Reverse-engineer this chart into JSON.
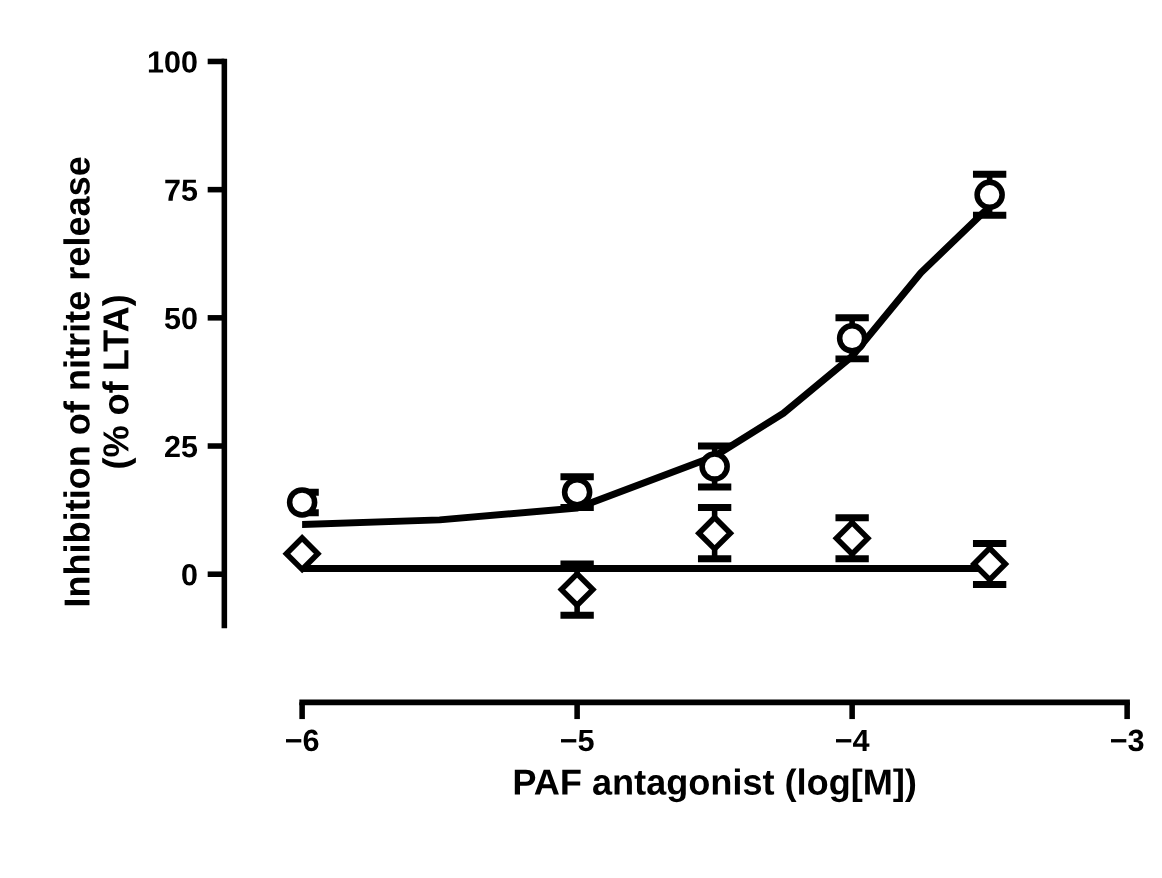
{
  "chart_data": {
    "type": "scatter",
    "xlabel": "PAF antagonist (log[M])",
    "ylabel": "Inhibition of nitrite release\n(% of LTA)",
    "xlim": [
      -6,
      -3
    ],
    "ylim": [
      -25,
      100
    ],
    "xticks": [
      {
        "value": -6,
        "label": "−6"
      },
      {
        "value": -5,
        "label": "−5"
      },
      {
        "value": -4,
        "label": "−4"
      },
      {
        "value": -3,
        "label": "−3"
      }
    ],
    "yticks": [
      0,
      25,
      50,
      75,
      100
    ],
    "grid": false,
    "series": [
      {
        "type": "line",
        "color": "#000000",
        "marker": "none",
        "line_style": "solid",
        "x": [
          -6,
          -5.5,
          -5,
          -4.5,
          -4.25,
          -4,
          -3.75,
          -3.5
        ],
        "values": [
          9.7,
          10.6,
          12.9,
          23,
          31.4,
          42.5,
          58.8,
          71.7
        ]
      },
      {
        "type": "line",
        "color": "#000000",
        "marker": "none",
        "line_style": "solid",
        "x": [
          -6,
          -3.5
        ],
        "values": [
          1.1,
          1.1
        ]
      },
      {
        "color": "#000000",
        "marker": "circle",
        "x": [
          -6,
          -5,
          -4.5,
          -4,
          -3.5
        ],
        "values": [
          14,
          16,
          21,
          46,
          74
        ],
        "errors": [
          2,
          3,
          4,
          4,
          4
        ]
      },
      {
        "color": "#000000",
        "marker": "diamond",
        "x": [
          -6,
          -5,
          -4.5,
          -4,
          -3.5
        ],
        "values": [
          4,
          -3,
          8,
          7,
          2
        ],
        "errors": [
          null,
          5,
          5,
          4,
          4
        ]
      }
    ]
  }
}
